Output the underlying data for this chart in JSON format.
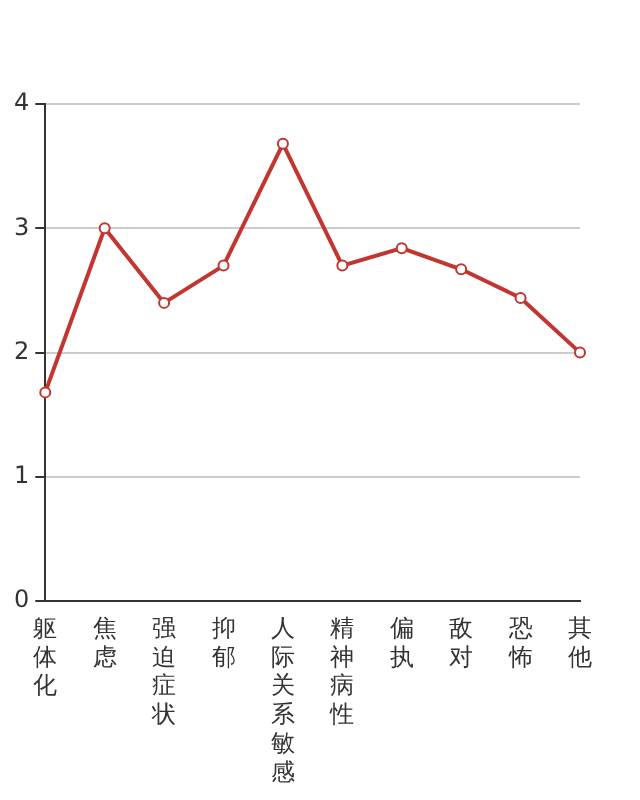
{
  "chart_data": {
    "type": "line",
    "categories": [
      "躯体化",
      "焦虑",
      "强迫症状",
      "抑郁",
      "人际关系敏感",
      "精神病性",
      "偏执",
      "敌对",
      "恐怖",
      "其他"
    ],
    "series": [
      {
        "color": "#c23531",
        "values": [
          1.68,
          3.0,
          2.4,
          2.7,
          3.68,
          2.7,
          2.84,
          2.67,
          2.44,
          2.0
        ]
      }
    ],
    "ylim": [
      0,
      4
    ],
    "yticks": [
      0,
      1,
      2,
      3,
      4
    ],
    "grid": "y",
    "marker": "circle",
    "line_style": "solid",
    "legend": false
  }
}
